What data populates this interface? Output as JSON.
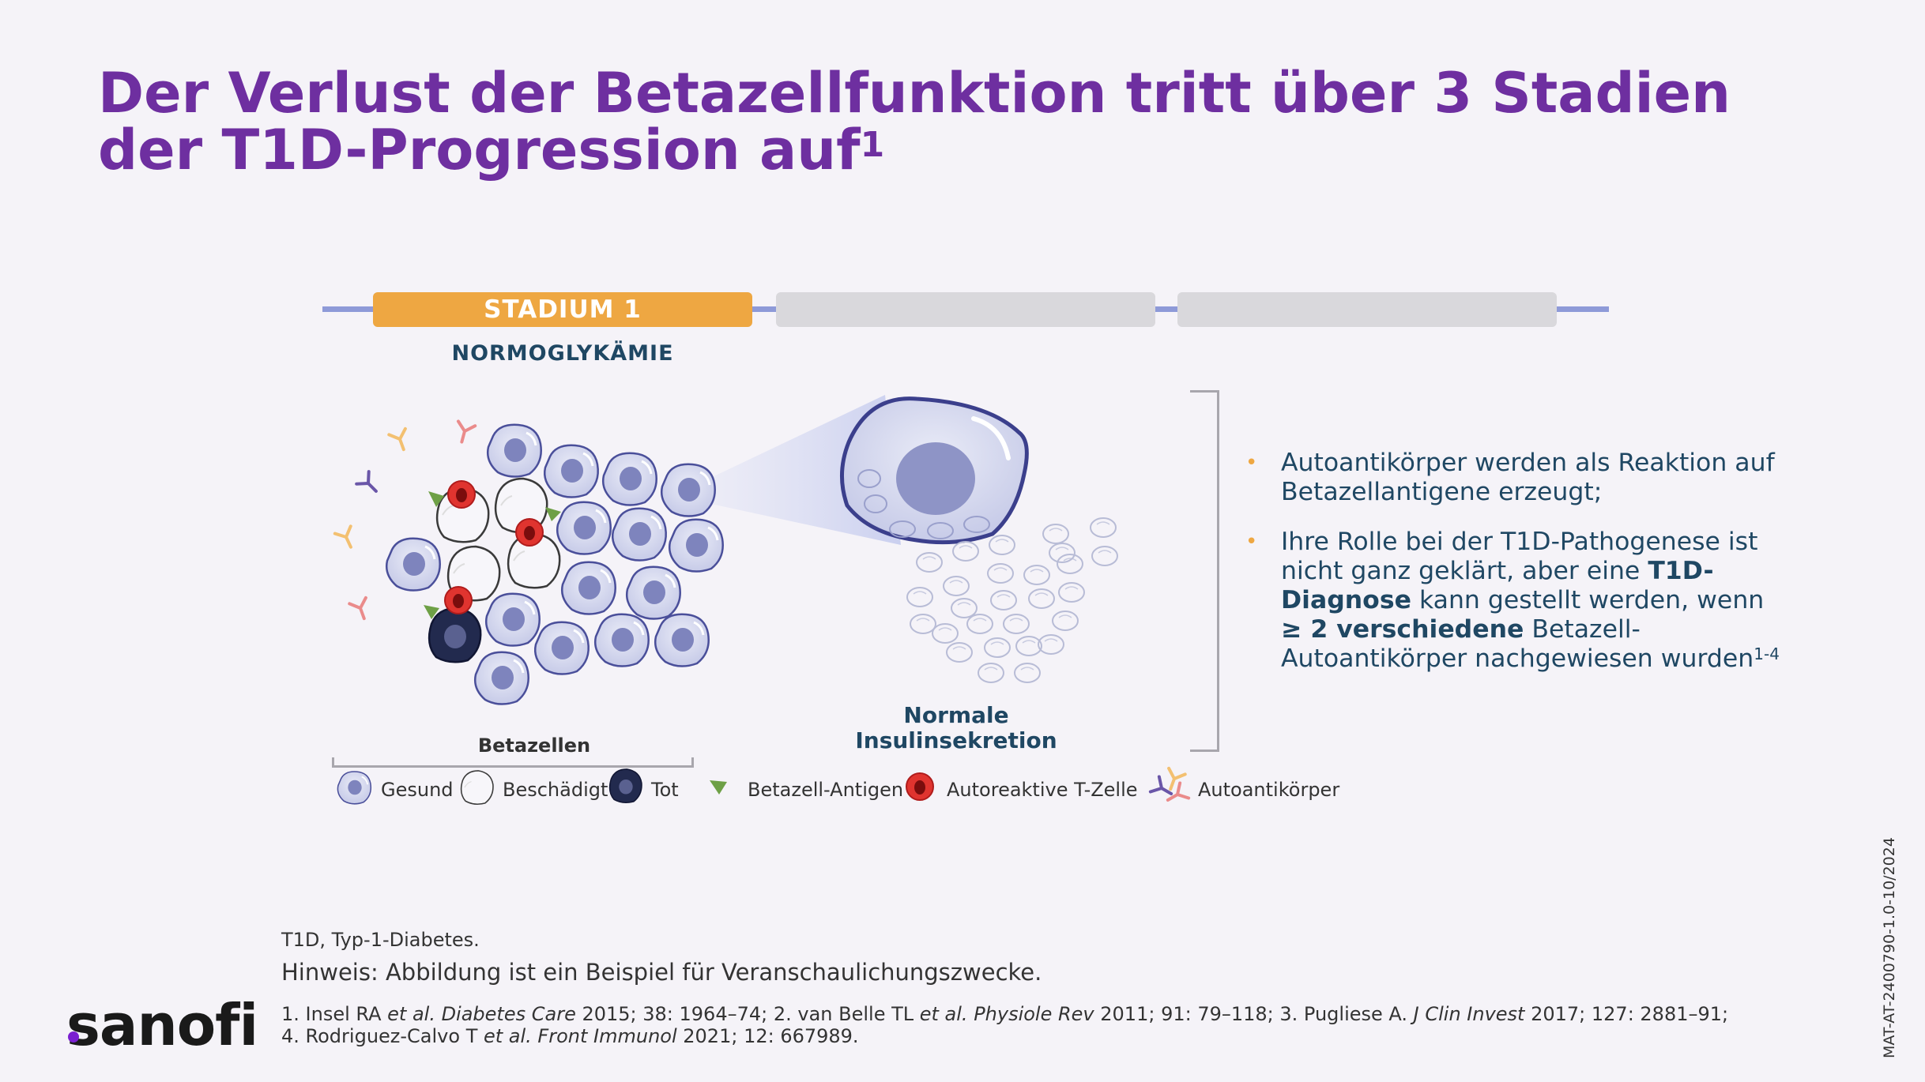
{
  "title": "Der Verlust der Betazellfunktion tritt über 3 Stadien der T1D-Progression auf",
  "title_sup": "1",
  "stages": [
    {
      "label": "STADIUM 1",
      "sublabel": "NORMOGLYKÄMIE",
      "color": "#eea742"
    },
    {
      "label": "",
      "color": "#d9d8dc"
    },
    {
      "label": "",
      "color": "#d9d8dc"
    }
  ],
  "diagram": {
    "betazellen_label": "Betazellen",
    "normal_label": "Normale Insulinsekretion"
  },
  "bullets": {
    "b1": "Autoantikörper werden als Reaktion auf Betazellantigene erzeugt;",
    "b2_pre": "Ihre Rolle bei der T1D-Pathogenese ist nicht ganz geklärt, aber eine ",
    "b2_bold1": "T1D-Diagnose",
    "b2_mid": " kann gestellt werden, wenn ",
    "b2_bold2": "≥ 2 verschiedene",
    "b2_post": " Betazell-Autoantikörper nachgewiesen wurden",
    "b2_sup": "1-4"
  },
  "legend": {
    "gesund": "Gesund",
    "beschaedigt": "Beschädigt",
    "tot": "Tot",
    "antigen": "Betazell-Antigen",
    "tzelle": "Autoreaktive T-Zelle",
    "autoantikoerper": "Autoantikörper"
  },
  "footer": {
    "abbrev": "T1D, Typ-1-Diabetes.",
    "hinweis": "Hinweis: Abbildung ist ein Beispiel für Veranschaulichungszwecke.",
    "refs_1a": "1. Insel RA ",
    "refs_1b": "et al. Diabetes Care",
    "refs_1c": " 2015; 38: 1964–74; 2. van Belle TL ",
    "refs_1d": "et al. Physiole Rev",
    "refs_1e": " 2011; 91: 79–118; 3. Pugliese A. ",
    "refs_1f": "J Clin Invest",
    "refs_1g": " 2017; 127: 2881–91;",
    "refs_2a": "4. Rodriguez-Calvo T ",
    "refs_2b": "et al. Front Immunol",
    "refs_2c": " 2021; 12: 667989."
  },
  "logo": "sanofi",
  "document_code": "MAT-AT-2400790-1.0-10/2024"
}
